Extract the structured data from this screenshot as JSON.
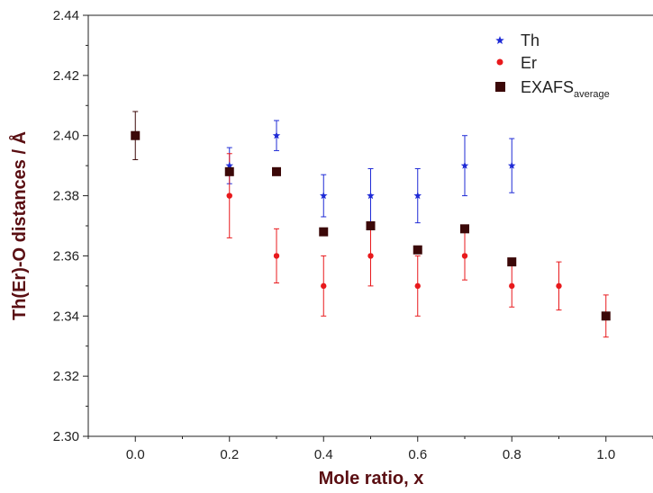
{
  "chart_data": {
    "type": "scatter",
    "xlabel": "Mole ratio, x",
    "ylabel": "Th(Er)-O distances / Å",
    "xlim": [
      -0.1,
      1.1
    ],
    "ylim": [
      2.3,
      2.44
    ],
    "x_ticks": [
      "0.0",
      "0.2",
      "0.4",
      "0.6",
      "0.8",
      "1.0"
    ],
    "x_tick_values": [
      0.0,
      0.2,
      0.4,
      0.6,
      0.8,
      1.0
    ],
    "y_ticks": [
      "2.30",
      "2.32",
      "2.34",
      "2.36",
      "2.38",
      "2.40",
      "2.42",
      "2.44"
    ],
    "y_tick_values": [
      2.3,
      2.32,
      2.34,
      2.36,
      2.38,
      2.4,
      2.42,
      2.44
    ],
    "grid": false,
    "legend_position": "top-right",
    "series": [
      {
        "name": "Th",
        "marker": "star",
        "color": "#1f2bd6",
        "x": [
          0.2,
          0.3,
          0.4,
          0.5,
          0.6,
          0.7,
          0.8
        ],
        "y": [
          2.39,
          2.4,
          2.38,
          2.38,
          2.38,
          2.39,
          2.39
        ],
        "err_low": [
          2.384,
          2.395,
          2.373,
          2.371,
          2.371,
          2.38,
          2.381
        ],
        "err_high": [
          2.396,
          2.405,
          2.387,
          2.389,
          2.389,
          2.4,
          2.399
        ]
      },
      {
        "name": "Er",
        "marker": "circle",
        "color": "#e8191c",
        "x": [
          0.2,
          0.3,
          0.4,
          0.5,
          0.6,
          0.7,
          0.8,
          0.9,
          1.0
        ],
        "y": [
          2.38,
          2.36,
          2.35,
          2.36,
          2.35,
          2.36,
          2.35,
          2.35,
          2.34
        ],
        "err_low": [
          2.366,
          2.351,
          2.34,
          2.35,
          2.34,
          2.352,
          2.343,
          2.342,
          2.333
        ],
        "err_high": [
          2.394,
          2.369,
          2.36,
          2.37,
          2.36,
          2.368,
          2.357,
          2.358,
          2.347
        ]
      },
      {
        "name": "EXAFS",
        "name_subscript": "average",
        "marker": "square",
        "color": "#3b0808",
        "x": [
          0.0,
          0.2,
          0.3,
          0.4,
          0.5,
          0.6,
          0.7,
          0.8,
          1.0
        ],
        "y": [
          2.4,
          2.388,
          2.388,
          2.368,
          2.37,
          2.362,
          2.369,
          2.358,
          2.34
        ],
        "err_low": [
          2.392,
          null,
          null,
          null,
          null,
          null,
          null,
          null,
          null
        ],
        "err_high": [
          2.408,
          null,
          null,
          null,
          null,
          null,
          null,
          null,
          null
        ]
      }
    ]
  }
}
